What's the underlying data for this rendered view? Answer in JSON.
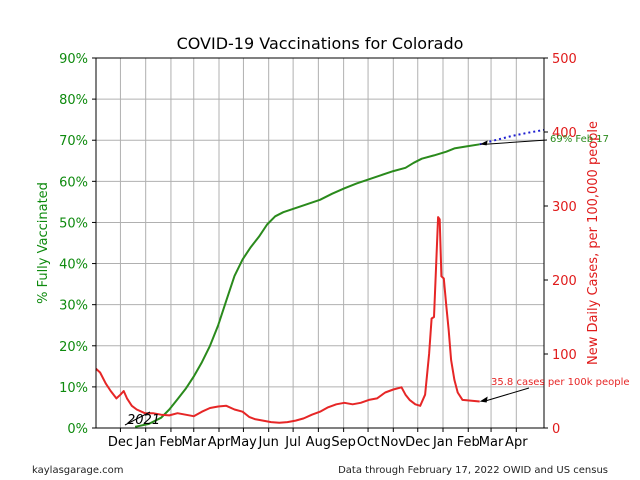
{
  "chart_data": {
    "type": "line",
    "title": "COVID-19 Vaccinations for Colorado",
    "xlabel": "",
    "ylabel_left": "% Fully Vaccinated",
    "ylabel_right": "New Daily Cases, per 100,000 people",
    "xlim_days": [
      -30,
      520
    ],
    "ylim_left": [
      0,
      90
    ],
    "ylim_right": [
      0,
      500
    ],
    "grid": true,
    "x_ticks": [
      {
        "label": "Dec",
        "day": 0
      },
      {
        "label": "Jan",
        "day": 31
      },
      {
        "label": "Feb",
        "day": 62
      },
      {
        "label": "Mar",
        "day": 90
      },
      {
        "label": "Apr",
        "day": 121
      },
      {
        "label": "May",
        "day": 151
      },
      {
        "label": "Jun",
        "day": 182
      },
      {
        "label": "Jul",
        "day": 212
      },
      {
        "label": "Aug",
        "day": 243
      },
      {
        "label": "Sep",
        "day": 274
      },
      {
        "label": "Oct",
        "day": 304
      },
      {
        "label": "Nov",
        "day": 335
      },
      {
        "label": "Dec",
        "day": 365
      },
      {
        "label": "Jan",
        "day": 396
      },
      {
        "label": "Feb",
        "day": 427
      },
      {
        "label": "Mar",
        "day": 455
      },
      {
        "label": "Apr",
        "day": 486
      }
    ],
    "y_ticks_left": [
      "0%",
      "10%",
      "20%",
      "30%",
      "40%",
      "50%",
      "60%",
      "70%",
      "80%",
      "90%"
    ],
    "y_ticks_right": [
      "0",
      "100",
      "200",
      "300",
      "400",
      "500"
    ],
    "series": [
      {
        "color": "#2a8a1c",
        "axis": "left",
        "points": [
          [
            18,
            0.3
          ],
          [
            35,
            1.0
          ],
          [
            50,
            2.5
          ],
          [
            60,
            4.5
          ],
          [
            70,
            7.0
          ],
          [
            80,
            9.5
          ],
          [
            90,
            12.5
          ],
          [
            100,
            16.0
          ],
          [
            110,
            20.0
          ],
          [
            120,
            25.0
          ],
          [
            130,
            31.0
          ],
          [
            140,
            37.0
          ],
          [
            150,
            41.0
          ],
          [
            160,
            44.0
          ],
          [
            170,
            46.5
          ],
          [
            180,
            49.5
          ],
          [
            190,
            51.5
          ],
          [
            200,
            52.5
          ],
          [
            215,
            53.5
          ],
          [
            230,
            54.5
          ],
          [
            245,
            55.5
          ],
          [
            260,
            57.0
          ],
          [
            275,
            58.3
          ],
          [
            290,
            59.5
          ],
          [
            305,
            60.5
          ],
          [
            320,
            61.5
          ],
          [
            335,
            62.5
          ],
          [
            350,
            63.3
          ],
          [
            360,
            64.5
          ],
          [
            370,
            65.5
          ],
          [
            385,
            66.3
          ],
          [
            400,
            67.2
          ],
          [
            410,
            68.0
          ],
          [
            425,
            68.5
          ],
          [
            441,
            69.0
          ]
        ]
      },
      {
        "color": "#1f1fd1",
        "axis": "left",
        "projection": true,
        "points": [
          [
            441,
            69.0
          ],
          [
            460,
            70.0
          ],
          [
            480,
            71.0
          ],
          [
            500,
            71.8
          ],
          [
            520,
            72.5
          ]
        ]
      },
      {
        "color": "#e62626",
        "axis": "right",
        "points": [
          [
            -30,
            80
          ],
          [
            -25,
            75
          ],
          [
            -18,
            60
          ],
          [
            -12,
            50
          ],
          [
            -5,
            40
          ],
          [
            0,
            45
          ],
          [
            4,
            50
          ],
          [
            8,
            40
          ],
          [
            14,
            30
          ],
          [
            20,
            25
          ],
          [
            30,
            20
          ],
          [
            40,
            20
          ],
          [
            50,
            18
          ],
          [
            60,
            17
          ],
          [
            70,
            20
          ],
          [
            80,
            18
          ],
          [
            90,
            16
          ],
          [
            100,
            22
          ],
          [
            110,
            27
          ],
          [
            120,
            29
          ],
          [
            130,
            30
          ],
          [
            140,
            25
          ],
          [
            150,
            22
          ],
          [
            158,
            15
          ],
          [
            165,
            12
          ],
          [
            175,
            10
          ],
          [
            185,
            8
          ],
          [
            195,
            7
          ],
          [
            205,
            8
          ],
          [
            215,
            10
          ],
          [
            225,
            13
          ],
          [
            235,
            18
          ],
          [
            245,
            22
          ],
          [
            255,
            28
          ],
          [
            265,
            32
          ],
          [
            275,
            34
          ],
          [
            285,
            32
          ],
          [
            295,
            34
          ],
          [
            305,
            38
          ],
          [
            315,
            40
          ],
          [
            325,
            48
          ],
          [
            335,
            52
          ],
          [
            345,
            55
          ],
          [
            350,
            45
          ],
          [
            355,
            38
          ],
          [
            362,
            32
          ],
          [
            368,
            30
          ],
          [
            374,
            45
          ],
          [
            379,
            100
          ],
          [
            382,
            148
          ],
          [
            385,
            150
          ],
          [
            388,
            232
          ],
          [
            390,
            285
          ],
          [
            392,
            282
          ],
          [
            394,
            205
          ],
          [
            397,
            202
          ],
          [
            400,
            165
          ],
          [
            403,
            132
          ],
          [
            406,
            92
          ],
          [
            410,
            65
          ],
          [
            414,
            48
          ],
          [
            420,
            38
          ],
          [
            441,
            35.8
          ]
        ]
      }
    ],
    "annotations": [
      {
        "text": "69% Feb 17",
        "color": "#2a8a1c"
      },
      {
        "text": "35.8 cases per 100k people",
        "color": "#e62626"
      },
      {
        "text": "2021",
        "color": "#000000"
      }
    ]
  },
  "footer": {
    "source_left": "kaylasgarage.com",
    "source_right": "Data through February 17, 2022 OWID and US census"
  },
  "colors": {
    "left_axis": "#0e8a0e",
    "right_axis": "#e01b1b",
    "grid": "#b0b0b0"
  }
}
